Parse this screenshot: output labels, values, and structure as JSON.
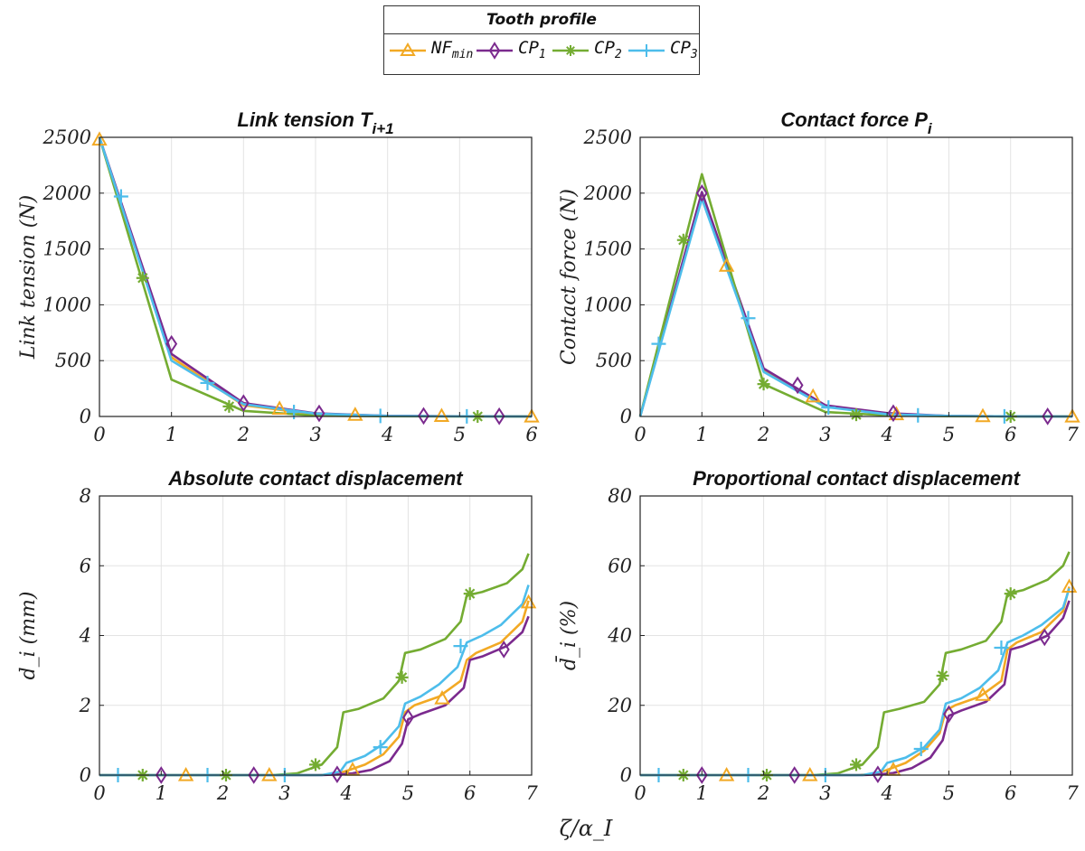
{
  "legend": {
    "title": "Tooth profile",
    "entries": [
      {
        "main": "NF",
        "sub": "min",
        "color": "#F2A924",
        "marker": "triangle"
      },
      {
        "main": "CP",
        "sub": "1",
        "color": "#7B2A8E",
        "marker": "diamond"
      },
      {
        "main": "CP",
        "sub": "2",
        "color": "#74AC32",
        "marker": "asterisk"
      },
      {
        "main": "CP",
        "sub": "3",
        "color": "#4DBDEB",
        "marker": "plus"
      }
    ]
  },
  "common_xlabel": "ζ/α_I",
  "chart_data": [
    {
      "type": "line",
      "title": "Link tension T",
      "title_sub": "i+1",
      "ylabel": "Link tension (N)",
      "xlim": [
        0,
        6
      ],
      "ylim": [
        0,
        2500
      ],
      "xticks": [
        "0",
        "1",
        "2",
        "3",
        "4",
        "5",
        "6"
      ],
      "yticks": [
        "0",
        "500",
        "1000",
        "1500",
        "2000",
        "2500"
      ],
      "grid": true,
      "series": [
        {
          "name": "NF_min",
          "x": [
            0,
            1,
            2,
            3,
            4,
            5,
            6
          ],
          "y": [
            2500,
            530,
            100,
            20,
            5,
            2,
            0
          ],
          "markers_x": [
            0,
            2.5,
            3.55,
            4.75,
            6
          ],
          "markers_y": [
            2480,
            70,
            15,
            5,
            0
          ]
        },
        {
          "name": "CP_1",
          "x": [
            0,
            1,
            2,
            3,
            4,
            5,
            6
          ],
          "y": [
            2500,
            560,
            120,
            28,
            6,
            2,
            0
          ],
          "markers_x": [
            1,
            2,
            3.05,
            4.5,
            5.55
          ],
          "markers_y": [
            650,
            120,
            28,
            5,
            2
          ]
        },
        {
          "name": "CP_2",
          "x": [
            0,
            1,
            2,
            3,
            4,
            5,
            6
          ],
          "y": [
            2500,
            330,
            50,
            8,
            2,
            0,
            0
          ],
          "markers_x": [
            0.6,
            1.8,
            5.25
          ],
          "markers_y": [
            1240,
            90,
            0
          ]
        },
        {
          "name": "CP_3",
          "x": [
            0,
            1,
            2,
            3,
            4,
            5,
            6
          ],
          "y": [
            2500,
            500,
            110,
            25,
            5,
            1,
            0
          ],
          "markers_x": [
            0.3,
            1.5,
            2.7,
            3.9,
            5.1
          ],
          "markers_y": [
            1970,
            300,
            40,
            5,
            1
          ]
        }
      ]
    },
    {
      "type": "line",
      "title": "Contact force P",
      "title_sub": "i",
      "ylabel": "Contact force (N)",
      "xlim": [
        0,
        7
      ],
      "ylim": [
        0,
        2500
      ],
      "xticks": [
        "0",
        "1",
        "2",
        "3",
        "4",
        "5",
        "6",
        "7"
      ],
      "yticks": [
        "0",
        "500",
        "1000",
        "1500",
        "2000",
        "2500"
      ],
      "grid": true,
      "series": [
        {
          "name": "NF_min",
          "x": [
            0,
            1,
            2,
            3,
            4,
            5,
            6,
            7
          ],
          "y": [
            0,
            2000,
            420,
            95,
            20,
            5,
            1,
            0
          ],
          "markers_x": [
            1.4,
            2.8,
            4.15,
            5.55,
            7
          ],
          "markers_y": [
            1350,
            180,
            20,
            3,
            0
          ]
        },
        {
          "name": "CP_1",
          "x": [
            0,
            1,
            2,
            3,
            4,
            5,
            6,
            7
          ],
          "y": [
            0,
            2010,
            430,
            100,
            30,
            5,
            1,
            0
          ],
          "markers_x": [
            1,
            2.55,
            4.1,
            6.6
          ],
          "markers_y": [
            2000,
            280,
            30,
            1
          ]
        },
        {
          "name": "CP_2",
          "x": [
            0,
            1,
            2,
            3,
            4,
            5,
            6,
            7
          ],
          "y": [
            0,
            2170,
            290,
            40,
            10,
            2,
            0,
            0
          ],
          "markers_x": [
            0.7,
            2,
            3.5,
            6
          ],
          "markers_y": [
            1580,
            290,
            15,
            0
          ]
        },
        {
          "name": "CP_3",
          "x": [
            0,
            1,
            2,
            3,
            4,
            5,
            6,
            7
          ],
          "y": [
            0,
            1950,
            400,
            85,
            20,
            5,
            1,
            0
          ],
          "markers_x": [
            0.3,
            1.75,
            3.05,
            4.5,
            5.9
          ],
          "markers_y": [
            650,
            880,
            80,
            10,
            1
          ]
        }
      ]
    },
    {
      "type": "line",
      "title": "Absolute contact displacement",
      "ylabel": "d_i (mm)",
      "xlim": [
        0,
        7
      ],
      "ylim": [
        0,
        8
      ],
      "xticks": [
        "0",
        "1",
        "2",
        "3",
        "4",
        "5",
        "6",
        "7"
      ],
      "yticks": [
        "0",
        "2",
        "4",
        "6",
        "8"
      ],
      "grid": true,
      "series": [
        {
          "name": "NF_min",
          "x": [
            0,
            3.5,
            3.8,
            4,
            4.3,
            4.6,
            4.85,
            4.95,
            5.1,
            5.5,
            5.85,
            5.95,
            6.1,
            6.5,
            6.85,
            6.95
          ],
          "y": [
            0,
            0,
            0.02,
            0.12,
            0.3,
            0.6,
            1.1,
            1.8,
            2,
            2.25,
            2.7,
            3.3,
            3.5,
            3.8,
            4.4,
            5
          ],
          "markers_x": [
            1.4,
            2.75,
            4.1,
            5.55,
            6.95
          ],
          "markers_y": [
            0,
            0,
            0.15,
            2.2,
            4.95
          ]
        },
        {
          "name": "CP_1",
          "x": [
            0,
            3.6,
            3.9,
            4.1,
            4.4,
            4.7,
            4.9,
            5,
            5.2,
            5.6,
            5.9,
            6,
            6.2,
            6.6,
            6.85,
            6.95
          ],
          "y": [
            0,
            0,
            0.02,
            0.05,
            0.15,
            0.4,
            0.9,
            1.6,
            1.75,
            2,
            2.5,
            3.3,
            3.4,
            3.7,
            4.1,
            4.55
          ],
          "markers_x": [
            1,
            2.5,
            3.85,
            5,
            6.55
          ],
          "markers_y": [
            0,
            0,
            0.02,
            1.65,
            3.6
          ]
        },
        {
          "name": "CP_2",
          "x": [
            0,
            2.8,
            3.2,
            3.6,
            3.85,
            3.95,
            4.2,
            4.6,
            4.85,
            4.95,
            5.2,
            5.6,
            5.85,
            5.95,
            6.2,
            6.6,
            6.85,
            6.95
          ],
          "y": [
            0,
            0,
            0.05,
            0.3,
            0.8,
            1.8,
            1.9,
            2.2,
            2.7,
            3.5,
            3.6,
            3.9,
            4.4,
            5.15,
            5.25,
            5.5,
            5.9,
            6.35
          ],
          "markers_x": [
            0.7,
            2.05,
            3.5,
            4.9,
            6
          ],
          "markers_y": [
            0,
            0,
            0.3,
            2.8,
            5.2
          ]
        },
        {
          "name": "CP_3",
          "x": [
            0,
            3.6,
            3.9,
            4,
            4.3,
            4.6,
            4.85,
            4.95,
            5.2,
            5.5,
            5.8,
            5.95,
            6.2,
            6.5,
            6.85,
            6.95
          ],
          "y": [
            0,
            0,
            0.1,
            0.35,
            0.55,
            0.9,
            1.4,
            2.05,
            2.25,
            2.6,
            3.1,
            3.8,
            4,
            4.3,
            4.9,
            5.45
          ],
          "markers_x": [
            0.3,
            1.75,
            3,
            4.55,
            5.85
          ],
          "markers_y": [
            0,
            0,
            0,
            0.8,
            3.7
          ]
        }
      ]
    },
    {
      "type": "line",
      "title": "Proportional contact displacement",
      "ylabel": "d̄_i (%)",
      "xlim": [
        0,
        7
      ],
      "ylim": [
        0,
        80
      ],
      "xticks": [
        "0",
        "1",
        "2",
        "3",
        "4",
        "5",
        "6",
        "7"
      ],
      "yticks": [
        "0",
        "20",
        "40",
        "60",
        "80"
      ],
      "grid": true,
      "series": [
        {
          "name": "NF_min",
          "x": [
            0,
            3.5,
            3.8,
            4,
            4.3,
            4.6,
            4.85,
            4.95,
            5.1,
            5.5,
            5.85,
            5.95,
            6.1,
            6.5,
            6.85,
            6.95
          ],
          "y": [
            0,
            0,
            0.3,
            1.5,
            3.5,
            7,
            12,
            18.5,
            20,
            22.5,
            27,
            36,
            38,
            41,
            47,
            54
          ],
          "markers_x": [
            1.4,
            2.75,
            4.1,
            5.55,
            6.95
          ],
          "markers_y": [
            0,
            0,
            1.5,
            23,
            54
          ]
        },
        {
          "name": "CP_1",
          "x": [
            0,
            3.6,
            3.9,
            4.1,
            4.4,
            4.7,
            4.9,
            5,
            5.2,
            5.6,
            5.9,
            6,
            6.2,
            6.6,
            6.85,
            6.95
          ],
          "y": [
            0,
            0,
            0.2,
            0.6,
            2,
            5,
            10,
            17,
            18.5,
            21,
            26,
            36,
            37,
            40,
            45,
            50
          ],
          "markers_x": [
            1,
            2.5,
            3.85,
            5,
            6.55
          ],
          "markers_y": [
            0,
            0,
            0.2,
            17.5,
            39.5
          ]
        },
        {
          "name": "CP_2",
          "x": [
            0,
            2.8,
            3.2,
            3.6,
            3.85,
            3.95,
            4.2,
            4.6,
            4.85,
            4.95,
            5.2,
            5.6,
            5.85,
            5.95,
            6.2,
            6.6,
            6.85,
            6.95
          ],
          "y": [
            0,
            0,
            0.5,
            3,
            8,
            18,
            19,
            21,
            26,
            35,
            36,
            38.5,
            44,
            52,
            53,
            56,
            60,
            64
          ],
          "markers_x": [
            0.7,
            2.05,
            3.5,
            4.9,
            6
          ],
          "markers_y": [
            0,
            0,
            3,
            28.5,
            52
          ]
        },
        {
          "name": "CP_3",
          "x": [
            0,
            3.6,
            3.9,
            4,
            4.3,
            4.6,
            4.85,
            4.95,
            5.2,
            5.5,
            5.8,
            5.95,
            6.2,
            6.5,
            6.85,
            6.95
          ],
          "y": [
            0,
            0,
            1,
            3.5,
            5,
            8,
            13,
            20.5,
            22,
            25,
            30,
            38,
            40,
            43,
            48,
            53.5
          ],
          "markers_x": [
            0.3,
            1.75,
            3,
            4.55,
            5.85
          ],
          "markers_y": [
            0,
            0,
            0,
            7.5,
            36.5
          ]
        }
      ]
    }
  ]
}
